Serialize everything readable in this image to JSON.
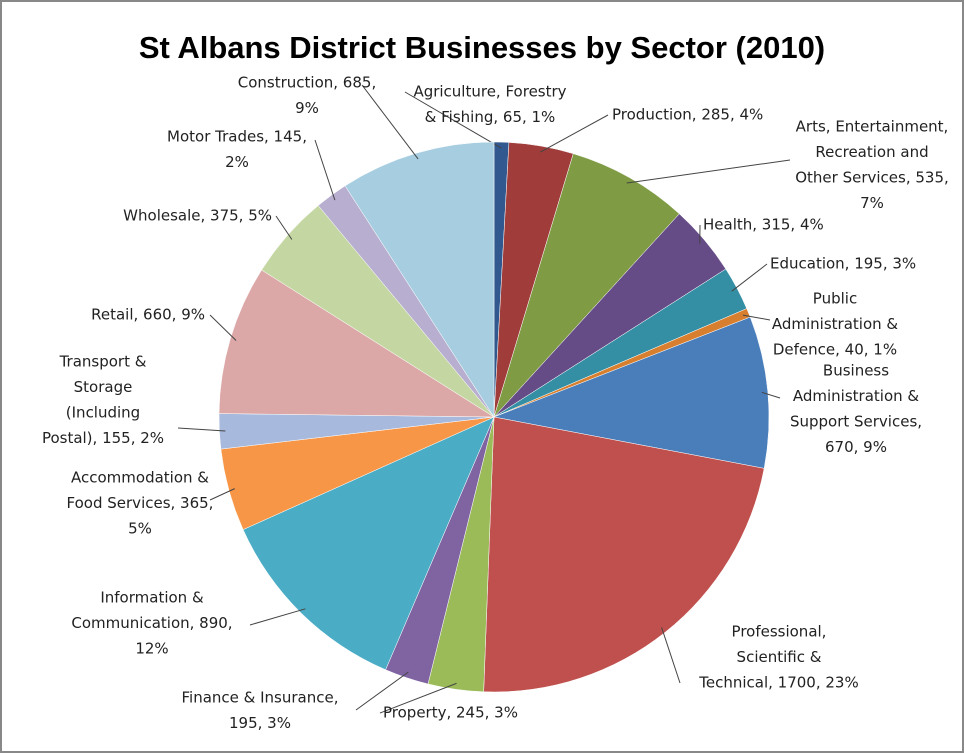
{
  "chart_data": {
    "type": "pie",
    "title": "St Albans District Businesses by Sector (2010)",
    "values": [
      65,
      285,
      535,
      315,
      195,
      40,
      670,
      1700,
      245,
      195,
      890,
      365,
      155,
      660,
      375,
      145,
      685
    ],
    "colors": [
      "#31598f",
      "#a03d3a",
      "#7f9c45",
      "#664c87",
      "#358fa4",
      "#d77f2e",
      "#4a7ebb",
      "#c0504d",
      "#9bbb59",
      "#8064a2",
      "#4bacc6",
      "#f79646",
      "#a7b9dd",
      "#dba8a7",
      "#c4d7a2",
      "#b8aed0",
      "#a6cde0"
    ],
    "labels": [
      [
        "Agriculture, Forestry",
        "& Fishing, 65, 1%"
      ],
      [
        "Production, 285, 4%"
      ],
      [
        "Arts, Entertainment,",
        "Recreation and",
        "Other Services, 535,",
        "7%"
      ],
      [
        "Health, 315, 4%"
      ],
      [
        "Education, 195, 3%"
      ],
      [
        "Public",
        "Administration &",
        "Defence, 40, 1%"
      ],
      [
        "Business",
        "Administration &",
        "Support Services,",
        "670, 9%"
      ],
      [
        "Professional,",
        "Scientific &",
        "Technical, 1700, 23%"
      ],
      [
        "Property, 245, 3%"
      ],
      [
        "Finance & Insurance,",
        "195, 3%"
      ],
      [
        "Information &",
        "Communication, 890,",
        "12%"
      ],
      [
        "Accommodation &",
        "Food Services, 365,",
        "5%"
      ],
      [
        "Transport &",
        "Storage",
        "(Including",
        "Postal), 155, 2%"
      ],
      [
        "Retail, 660, 9%"
      ],
      [
        "Wholesale, 375, 5%"
      ],
      [
        "Motor Trades, 145,",
        "2%"
      ],
      [
        "Construction, 685,",
        "9%"
      ]
    ]
  }
}
